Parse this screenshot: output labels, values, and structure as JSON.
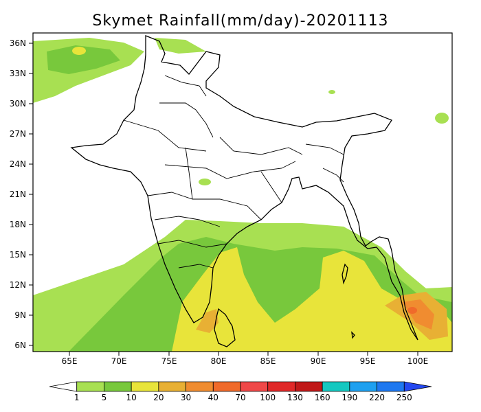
{
  "title": "Skymet Rainfall(mm/day)-20201113",
  "map": {
    "lat_labels": [
      "36N",
      "33N",
      "30N",
      "27N",
      "24N",
      "21N",
      "18N",
      "15N",
      "12N",
      "9N",
      "6N"
    ],
    "lon_labels": [
      "65E",
      "70E",
      "75E",
      "80E",
      "85E",
      "90E",
      "95E",
      "100E"
    ]
  },
  "legend": {
    "ticks": [
      "1",
      "5",
      "10",
      "20",
      "30",
      "40",
      "70",
      "100",
      "130",
      "160",
      "190",
      "220",
      "250"
    ],
    "colors": [
      "#ffffff",
      "#a8e052",
      "#78c83c",
      "#e8e43a",
      "#e8b034",
      "#f08c30",
      "#f06a2a",
      "#f04848",
      "#e02828",
      "#c01818",
      "#14c8c0",
      "#1ea0f0",
      "#1e78f0",
      "#2448f0"
    ]
  }
}
